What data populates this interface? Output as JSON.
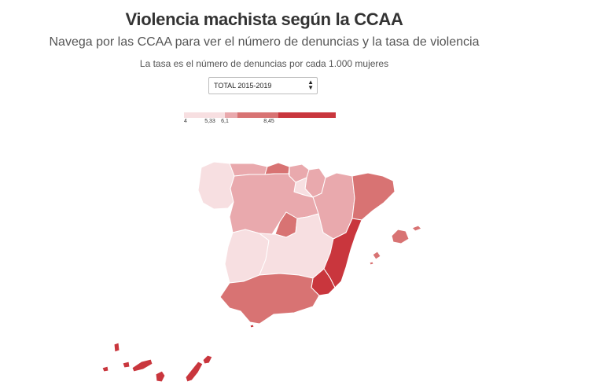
{
  "header": {
    "title": "Violencia machista según la CCAA",
    "subtitle": "Navega por las CCAA para ver el número de denuncias y la tasa de violencia",
    "note": "La tasa es el número de denuncias por cada 1.000 mujeres"
  },
  "period_select": {
    "selected": "TOTAL 2015-2019"
  },
  "legend": {
    "labels": [
      "4",
      "5,33",
      "6,1",
      "8,45"
    ],
    "colors": [
      "#f7dfe1",
      "#e9a9ad",
      "#d87373",
      "#c9363d"
    ]
  },
  "map": {
    "classes": {
      "c1": "#f7dfe1",
      "c2": "#e9a9ad",
      "c3": "#d87373",
      "c4": "#c9363d"
    }
  }
}
